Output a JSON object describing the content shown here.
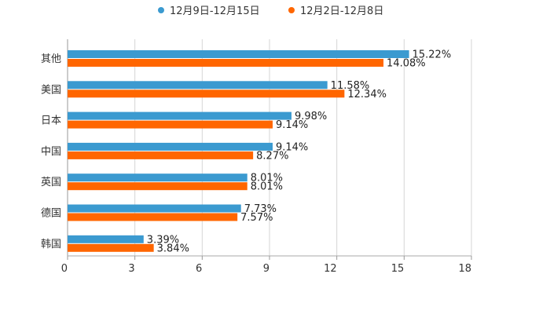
{
  "chart_data": {
    "type": "bar",
    "orientation": "horizontal",
    "categories": [
      "其他",
      "美国",
      "日本",
      "中国",
      "英国",
      "德国",
      "韩国"
    ],
    "series": [
      {
        "name": "12月9日-12月15日",
        "color": "#3b9ad0",
        "values": [
          15.22,
          11.58,
          9.98,
          9.14,
          8.01,
          7.73,
          3.39
        ],
        "labels": [
          "15.22%",
          "11.58%",
          "9.98%",
          "9.14%",
          "8.01%",
          "7.73%",
          "3.39%"
        ]
      },
      {
        "name": "12月2日-12月8日",
        "color": "#ff6600",
        "values": [
          14.08,
          12.34,
          9.14,
          8.27,
          8.01,
          7.57,
          3.84
        ],
        "labels": [
          "14.08%",
          "12.34%",
          "9.14%",
          "8.27%",
          "8.01%",
          "7.57%",
          "3.84%"
        ]
      }
    ],
    "xlim": [
      0,
      18
    ],
    "xticks": [
      0,
      3,
      6,
      9,
      12,
      15,
      18
    ],
    "grid": true,
    "legend_position": "top-center",
    "title": "",
    "xlabel": "",
    "ylabel": ""
  }
}
